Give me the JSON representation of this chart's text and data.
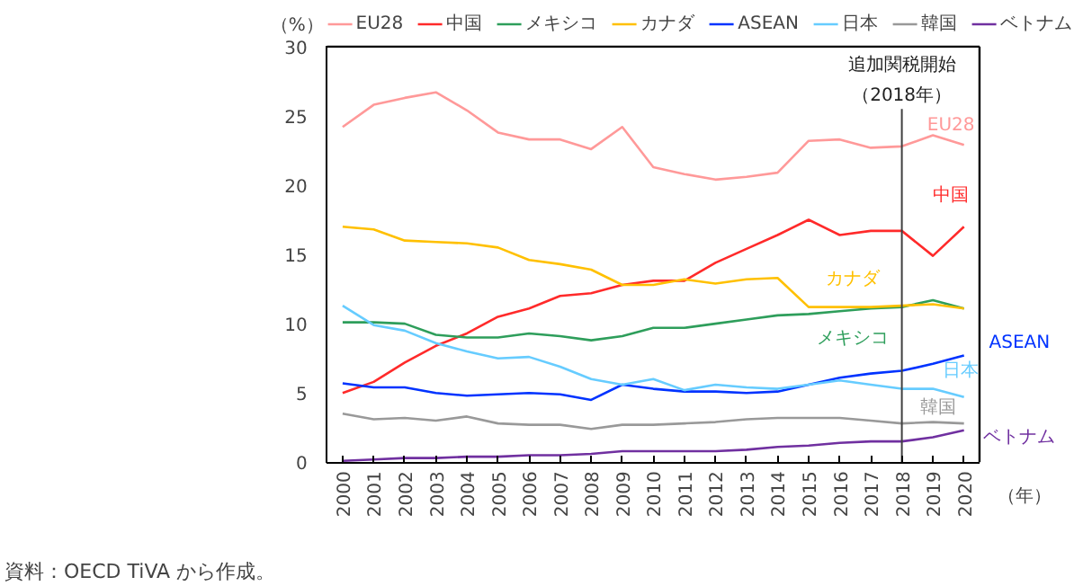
{
  "chart_data": {
    "type": "line",
    "ylabel": "（%）",
    "xlabel": "（年）",
    "x": [
      2000,
      2001,
      2002,
      2003,
      2004,
      2005,
      2006,
      2007,
      2008,
      2009,
      2010,
      2011,
      2012,
      2013,
      2014,
      2015,
      2016,
      2017,
      2018,
      2019,
      2020
    ],
    "xlim": [
      1999.5,
      2020.5
    ],
    "xticks": [
      2000,
      2001,
      2002,
      2003,
      2004,
      2005,
      2006,
      2007,
      2008,
      2009,
      2010,
      2011,
      2012,
      2013,
      2014,
      2015,
      2016,
      2017,
      2018,
      2019,
      2020
    ],
    "ylim": [
      0,
      30
    ],
    "yticks": [
      0,
      5,
      10,
      15,
      20,
      25,
      30
    ],
    "grid": false,
    "legend": "top",
    "marker": "none",
    "line_style": "solid",
    "series": [
      {
        "name": "EU28",
        "color": "#ff9999",
        "values": [
          24.2,
          25.8,
          26.3,
          26.7,
          25.4,
          23.8,
          23.3,
          23.3,
          22.6,
          24.2,
          21.3,
          20.8,
          20.4,
          20.6,
          20.9,
          23.2,
          23.3,
          22.7,
          22.8,
          23.6,
          22.9
        ]
      },
      {
        "name": "中国",
        "color": "#ff2a2a",
        "values": [
          5.0,
          5.8,
          7.2,
          8.4,
          9.3,
          10.5,
          11.1,
          12.0,
          12.2,
          12.8,
          13.1,
          13.1,
          14.4,
          15.4,
          16.4,
          17.5,
          16.4,
          16.7,
          16.7,
          14.9,
          17.0
        ]
      },
      {
        "name": "メキシコ",
        "color": "#2e9e5b",
        "values": [
          10.1,
          10.1,
          10.0,
          9.2,
          9.0,
          9.0,
          9.3,
          9.1,
          8.8,
          9.1,
          9.7,
          9.7,
          10.0,
          10.3,
          10.6,
          10.7,
          10.9,
          11.1,
          11.2,
          11.7,
          11.1
        ]
      },
      {
        "name": "カナダ",
        "color": "#ffc000",
        "values": [
          17.0,
          16.8,
          16.0,
          15.9,
          15.8,
          15.5,
          14.6,
          14.3,
          13.9,
          12.8,
          12.8,
          13.2,
          12.9,
          13.2,
          13.3,
          11.2,
          11.2,
          11.2,
          11.3,
          11.4,
          11.1
        ]
      },
      {
        "name": "ASEAN",
        "color": "#0033ff",
        "values": [
          5.7,
          5.4,
          5.4,
          5.0,
          4.8,
          4.9,
          5.0,
          4.9,
          4.5,
          5.6,
          5.3,
          5.1,
          5.1,
          5.0,
          5.1,
          5.6,
          6.1,
          6.4,
          6.6,
          7.1,
          7.7
        ]
      },
      {
        "name": "日本",
        "color": "#66ccff",
        "values": [
          11.3,
          9.9,
          9.5,
          8.6,
          8.0,
          7.5,
          7.6,
          6.9,
          6.0,
          5.6,
          6.0,
          5.2,
          5.6,
          5.4,
          5.3,
          5.6,
          5.9,
          5.6,
          5.3,
          5.3,
          4.7
        ]
      },
      {
        "name": "韓国",
        "color": "#999999",
        "values": [
          3.5,
          3.1,
          3.2,
          3.0,
          3.3,
          2.8,
          2.7,
          2.7,
          2.4,
          2.7,
          2.7,
          2.8,
          2.9,
          3.1,
          3.2,
          3.2,
          3.2,
          3.0,
          2.8,
          2.9,
          2.8
        ]
      },
      {
        "name": "ベトナム",
        "color": "#7030a0",
        "values": [
          0.1,
          0.2,
          0.3,
          0.3,
          0.4,
          0.4,
          0.5,
          0.5,
          0.6,
          0.8,
          0.8,
          0.8,
          0.8,
          0.9,
          1.1,
          1.2,
          1.4,
          1.5,
          1.5,
          1.8,
          2.3
        ]
      }
    ],
    "ref_lines": [
      {
        "axis": "x",
        "value": 2018,
        "label": "追加関税開始",
        "color": "#404040"
      }
    ],
    "annotations": [
      "（2018年）",
      "資料：OECD TiVA から作成。"
    ]
  }
}
